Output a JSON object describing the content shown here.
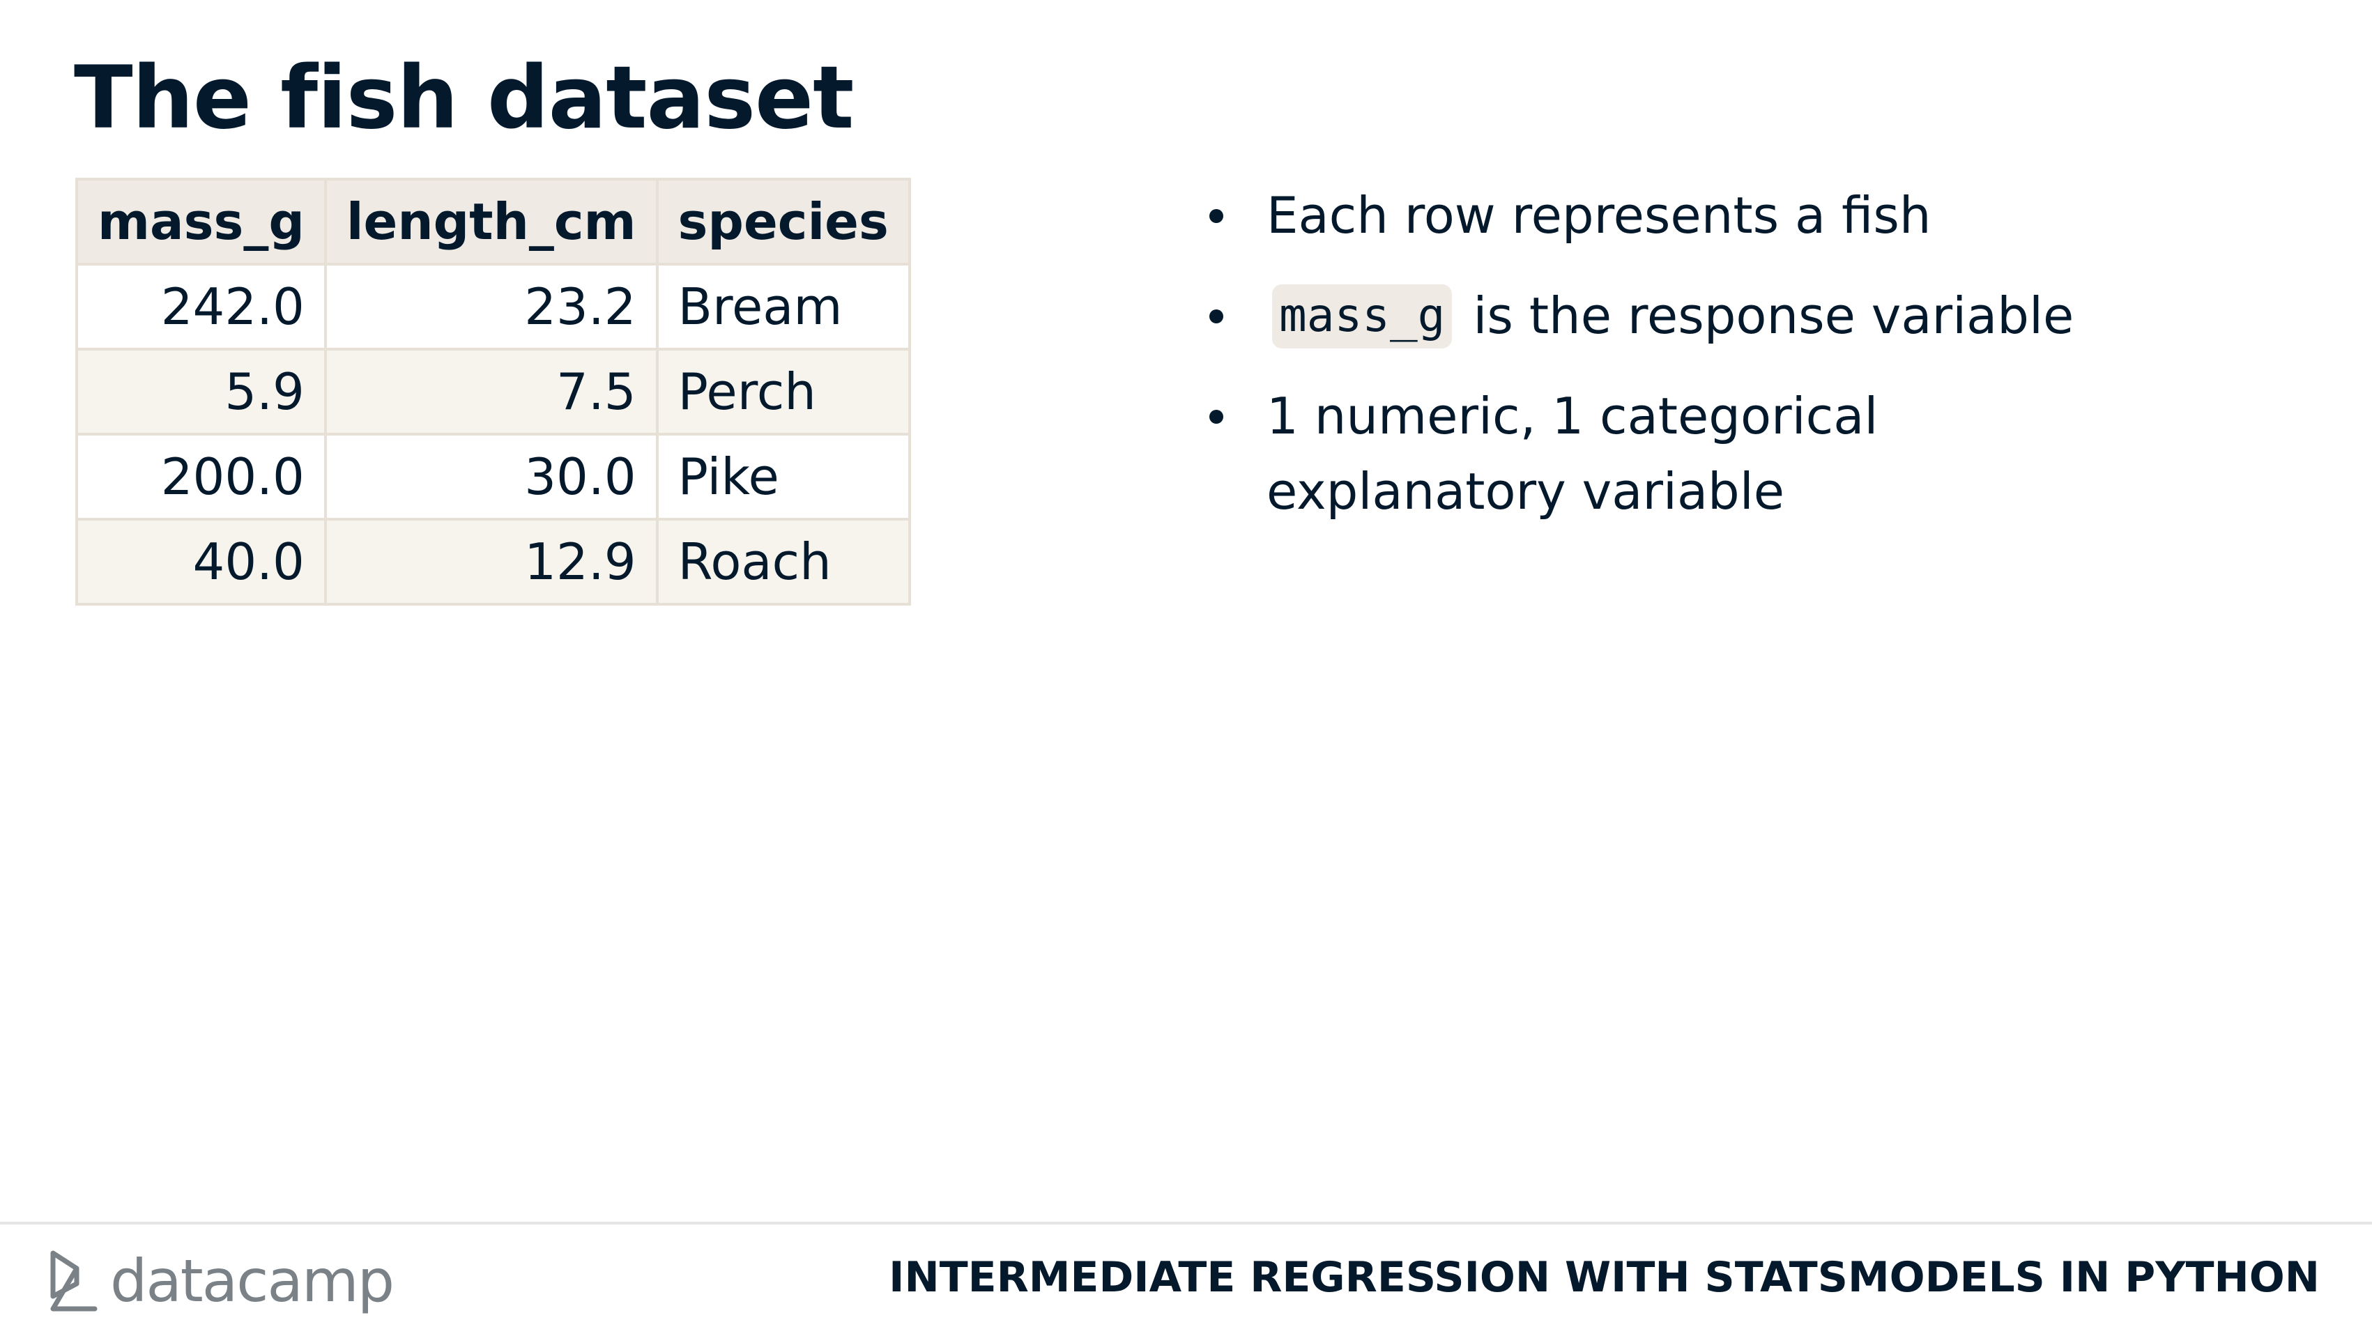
{
  "slide": {
    "title": "The fish dataset"
  },
  "table": {
    "headers": [
      "mass_g",
      "length_cm",
      "species"
    ],
    "rows": [
      [
        "242.0",
        "23.2",
        "Bream"
      ],
      [
        "5.9",
        "7.5",
        "Perch"
      ],
      [
        "200.0",
        "30.0",
        "Pike"
      ],
      [
        "40.0",
        "12.9",
        "Roach"
      ]
    ]
  },
  "bullets": {
    "item1": "Each row represents a fish",
    "item2_code": "mass_g",
    "item2_text": "is the response variable",
    "item3": "1 numeric, 1 categorical explanatory variable"
  },
  "footer": {
    "brand": "datacamp",
    "course": "INTERMEDIATE REGRESSION WITH STATSMODELS IN PYTHON"
  },
  "colors": {
    "text": "#05192d",
    "header_bg": "#efebe4",
    "stripe_bg": "#f7f4ee",
    "border": "#e6e0d6",
    "brand_gray": "#7a8288"
  }
}
